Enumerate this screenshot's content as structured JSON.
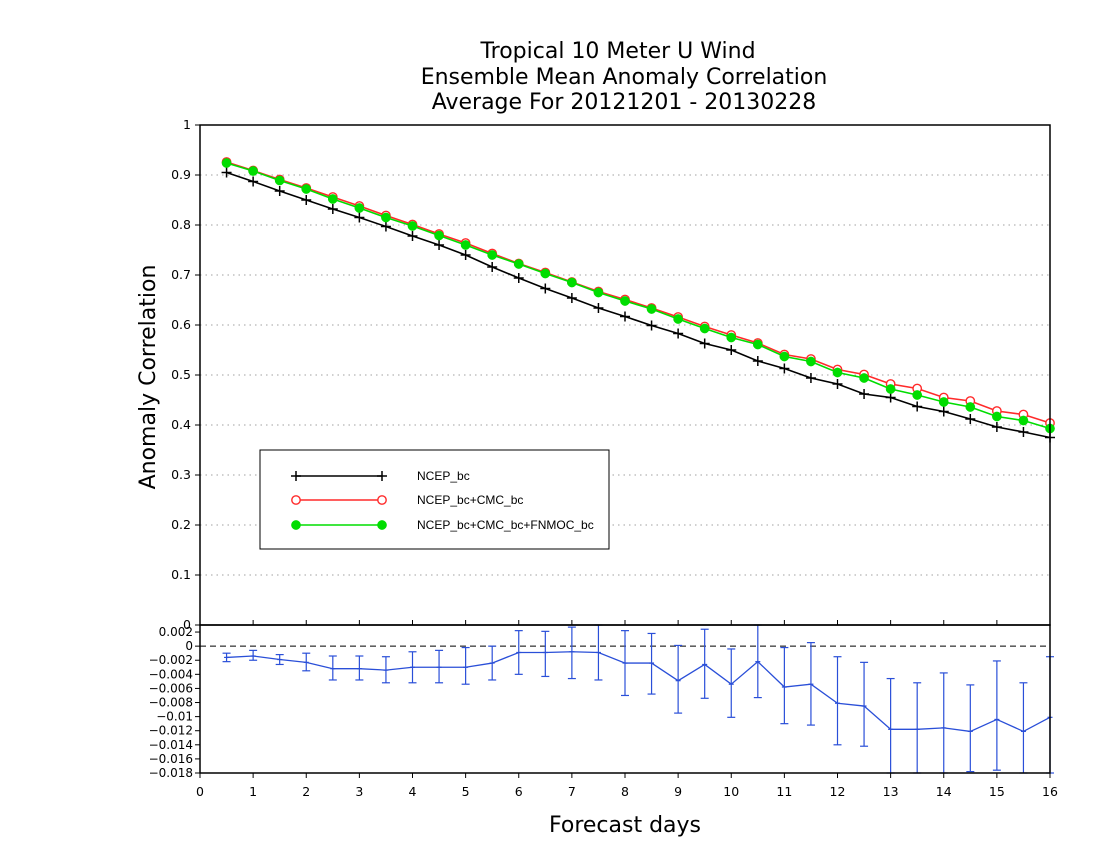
{
  "chart_data": [
    {
      "type": "line",
      "panel": "main",
      "title": [
        "Tropical 10 Meter U Wind",
        "Ensemble Mean Anomaly Correlation",
        "Average For 20121201 - 20130228"
      ],
      "ylabel": "Anomaly Correlation",
      "xlabel": "Forecast days",
      "xlim": [
        0,
        16
      ],
      "ylim": [
        0,
        1
      ],
      "xticks": [
        "0",
        "1",
        "2",
        "3",
        "4",
        "5",
        "6",
        "7",
        "8",
        "9",
        "10",
        "11",
        "12",
        "13",
        "14",
        "15",
        "16"
      ],
      "yticks": [
        "0",
        "0.1",
        "0.2",
        "0.3",
        "0.4",
        "0.5",
        "0.6",
        "0.7",
        "0.8",
        "0.9",
        "1"
      ],
      "grid": "horizontal dotted",
      "legend_position": "lower-left",
      "x": [
        0.5,
        1,
        1.5,
        2,
        2.5,
        3,
        3.5,
        4,
        4.5,
        5,
        5.5,
        6,
        6.5,
        7,
        7.5,
        8,
        8.5,
        9,
        9.5,
        10,
        10.5,
        11,
        11.5,
        12,
        12.5,
        13,
        13.5,
        14,
        14.5,
        15,
        15.5,
        16
      ],
      "series": [
        {
          "name": "NCEP_bc",
          "color": "#000000",
          "marker": "plus",
          "values": [
            0.905,
            0.887,
            0.868,
            0.85,
            0.832,
            0.815,
            0.797,
            0.778,
            0.76,
            0.74,
            0.716,
            0.694,
            0.673,
            0.654,
            0.634,
            0.617,
            0.599,
            0.583,
            0.563,
            0.55,
            0.528,
            0.513,
            0.494,
            0.482,
            0.462,
            0.455,
            0.437,
            0.427,
            0.412,
            0.396,
            0.386,
            0.375
          ]
        },
        {
          "name": "NCEP_bc+CMC_bc",
          "color": "#ff2a2a",
          "marker": "open-circle",
          "values": [
            0.926,
            0.909,
            0.891,
            0.874,
            0.856,
            0.838,
            0.819,
            0.801,
            0.782,
            0.764,
            0.743,
            0.723,
            0.705,
            0.686,
            0.667,
            0.651,
            0.634,
            0.616,
            0.597,
            0.58,
            0.564,
            0.541,
            0.532,
            0.511,
            0.501,
            0.482,
            0.473,
            0.455,
            0.448,
            0.428,
            0.421,
            0.404
          ]
        },
        {
          "name": "NCEP_bc+CMC_bc+FNMOC_bc",
          "color": "#00dd00",
          "marker": "filled-circle",
          "values": [
            0.924,
            0.908,
            0.889,
            0.872,
            0.852,
            0.834,
            0.815,
            0.798,
            0.779,
            0.76,
            0.74,
            0.722,
            0.703,
            0.685,
            0.665,
            0.648,
            0.632,
            0.612,
            0.593,
            0.575,
            0.561,
            0.537,
            0.527,
            0.505,
            0.494,
            0.472,
            0.46,
            0.446,
            0.436,
            0.417,
            0.409,
            0.393
          ]
        }
      ]
    },
    {
      "type": "line",
      "panel": "difference",
      "xlim": [
        0,
        16
      ],
      "ylim": [
        -0.018,
        0.003
      ],
      "yticks": [
        "0.002",
        "0",
        "−0.002",
        "−0.004",
        "−0.006",
        "−0.008",
        "−0.01",
        "−0.012",
        "−0.014",
        "−0.016",
        "−0.018"
      ],
      "color": "#2a4fd8",
      "reference_line": 0,
      "x": [
        0.5,
        1,
        1.5,
        2,
        2.5,
        3,
        3.5,
        4,
        4.5,
        5,
        5.5,
        6,
        6.5,
        7,
        7.5,
        8,
        8.5,
        9,
        9.5,
        10,
        10.5,
        11,
        11.5,
        12,
        12.5,
        13,
        13.5,
        14,
        14.5,
        15,
        15.5,
        16
      ],
      "values": [
        -0.0016,
        -0.0014,
        -0.0019,
        -0.0023,
        -0.0032,
        -0.0032,
        -0.0034,
        -0.003,
        -0.003,
        -0.003,
        -0.0024,
        -0.0009,
        -0.0009,
        -0.0008,
        -0.0009,
        -0.0024,
        -0.0024,
        -0.0049,
        -0.0026,
        -0.0054,
        -0.0022,
        -0.0058,
        -0.0054,
        -0.0081,
        -0.0085,
        -0.0118,
        -0.0118,
        -0.0116,
        -0.0121,
        -0.0104,
        -0.0121,
        -0.0101
      ],
      "err_low": [
        -0.0022,
        -0.002,
        -0.0026,
        -0.0035,
        -0.0048,
        -0.0048,
        -0.0052,
        -0.0052,
        -0.0052,
        -0.0054,
        -0.0048,
        -0.004,
        -0.0043,
        -0.0046,
        -0.0048,
        -0.007,
        -0.0068,
        -0.0095,
        -0.0074,
        -0.0101,
        -0.0073,
        -0.011,
        -0.0112,
        -0.014,
        -0.0142,
        -0.018,
        -0.018,
        -0.018,
        -0.0178,
        -0.0176,
        -0.018,
        -0.018
      ],
      "err_high": [
        -0.001,
        -0.0006,
        -0.0012,
        -0.001,
        -0.0014,
        -0.0014,
        -0.0015,
        -0.0008,
        -0.0006,
        -0.0002,
        0,
        0.0022,
        0.0021,
        0.0027,
        0.003,
        0.0022,
        0.0018,
        0.0001,
        0.0024,
        -0.0004,
        0.003,
        -0.0002,
        0.0005,
        -0.0015,
        -0.0023,
        -0.0046,
        -0.0052,
        -0.0038,
        -0.0055,
        -0.0021,
        -0.0052,
        -0.0015
      ]
    }
  ]
}
